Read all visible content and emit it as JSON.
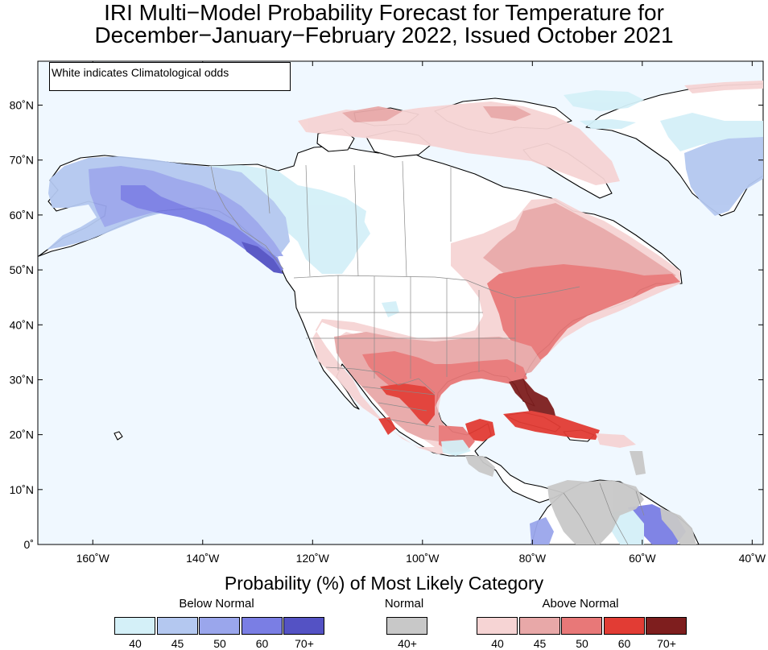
{
  "title": {
    "line1": "IRI Multi−Model Probability Forecast for Temperature for",
    "line2": "December−January−February 2022, Issued October 2021"
  },
  "map": {
    "note": "White indicates Climatological odds",
    "lon_labels": [
      "160˚W",
      "140˚W",
      "120˚W",
      "100˚W",
      "80˚W",
      "60˚W",
      "40˚W"
    ],
    "lon_values": [
      -160,
      -140,
      -120,
      -100,
      -80,
      -60,
      -40
    ],
    "lat_labels": [
      "0˚",
      "10˚N",
      "20˚N",
      "30˚N",
      "40˚N",
      "50˚N",
      "60˚N",
      "70˚N",
      "80˚N"
    ],
    "lat_values": [
      0,
      10,
      20,
      30,
      40,
      50,
      60,
      70,
      80
    ],
    "lon_range": [
      -170,
      -38
    ],
    "lat_range": [
      0,
      88
    ],
    "ocean_color": "#f0f8ff",
    "climatology_color": "#ffffff"
  },
  "legend": {
    "title": "Probability (%) of Most Likely Category",
    "below": {
      "label": "Below Normal",
      "ticks": [
        "40",
        "45",
        "50",
        "60",
        "70+"
      ],
      "colors": [
        "#d4f0f8",
        "#b4c8f0",
        "#9aa6ec",
        "#7a7ee4",
        "#5452c4"
      ]
    },
    "normal": {
      "label": "Normal",
      "ticks": [
        "40+"
      ],
      "colors": [
        "#c8c8c8"
      ]
    },
    "above": {
      "label": "Above Normal",
      "ticks": [
        "40",
        "45",
        "50",
        "60",
        "70+"
      ],
      "colors": [
        "#f6d4d4",
        "#e8a8a8",
        "#e87878",
        "#e23c34",
        "#7e1e1e"
      ]
    }
  }
}
